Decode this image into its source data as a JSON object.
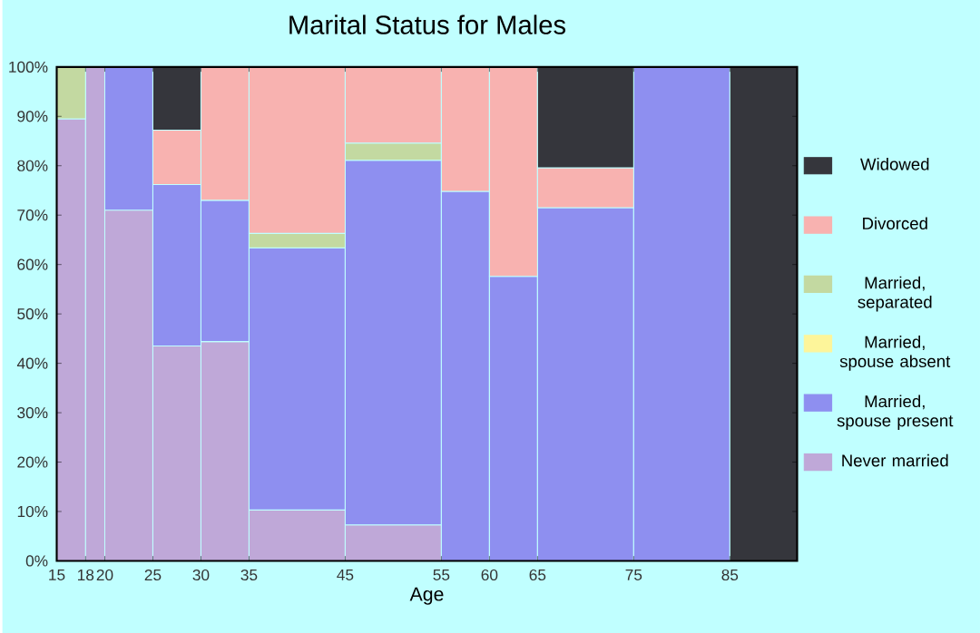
{
  "chart_data": {
    "type": "bar",
    "stacked": true,
    "title": "Marital Status for Males",
    "xlabel": "Age",
    "x": [
      16.5,
      19,
      22.5,
      27.5,
      32.5,
      40,
      50,
      57.5,
      62.5,
      70,
      80,
      88.5
    ],
    "xlim": [
      15,
      92
    ],
    "xticks": [
      15,
      18,
      20,
      25,
      30,
      35,
      45,
      55,
      60,
      65,
      75,
      85
    ],
    "ylim": [
      0,
      100
    ],
    "yticks": [
      {
        "value": 0,
        "label": "0%"
      },
      {
        "value": 10,
        "label": "10%"
      },
      {
        "value": 20,
        "label": "20%"
      },
      {
        "value": 30,
        "label": "30%"
      },
      {
        "value": 40,
        "label": "40%"
      },
      {
        "value": 50,
        "label": "50%"
      },
      {
        "value": 60,
        "label": "60%"
      },
      {
        "value": 70,
        "label": "70%"
      },
      {
        "value": 80,
        "label": "80%"
      },
      {
        "value": 90,
        "label": "90%"
      },
      {
        "value": 100,
        "label": "100%"
      }
    ],
    "legend": "right",
    "series": [
      {
        "name": "Never married",
        "color": "#bfa8d8",
        "values": [
          89.5,
          100,
          71,
          43.5,
          44.4,
          10.3,
          7.3,
          null,
          null,
          null,
          null,
          null
        ]
      },
      {
        "name": "Married, spouse present",
        "color": "#8e8ff0",
        "values": [
          null,
          null,
          29,
          32.7,
          28.6,
          53.1,
          73.8,
          74.8,
          57.6,
          71.5,
          100,
          null
        ]
      },
      {
        "name": "Married, spouse absent",
        "color": "#fdf59a",
        "values": [
          null,
          null,
          null,
          null,
          null,
          null,
          null,
          null,
          null,
          null,
          null,
          null
        ]
      },
      {
        "name": "Married, separated",
        "color": "#c3d9a1",
        "values": [
          10.5,
          null,
          null,
          null,
          null,
          2.9,
          3.5,
          null,
          null,
          null,
          null,
          null
        ]
      },
      {
        "name": "Divorced",
        "color": "#f8b2b0",
        "values": [
          null,
          null,
          null,
          11,
          27,
          33.7,
          15.4,
          25.2,
          42.4,
          8.1,
          null,
          null
        ]
      },
      {
        "name": "Widowed",
        "color": "#35363c",
        "values": [
          null,
          null,
          null,
          12.7,
          null,
          null,
          null,
          null,
          null,
          20.4,
          null,
          100
        ]
      }
    ]
  }
}
